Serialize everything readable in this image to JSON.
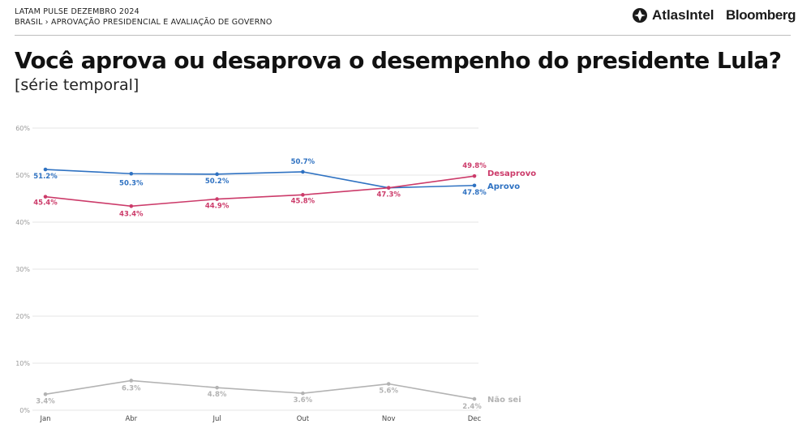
{
  "header": {
    "line1": "LATAM PULSE DEZEMBRO 2024",
    "line2": "BRASIL › APROVAÇÃO PRESIDENCIAL E AVALIAÇÃO DE GOVERNO",
    "brand_atlas": "AtlasIntel",
    "brand_bloomberg": "Bloomberg"
  },
  "colors": {
    "aprovo": "#2f72c2",
    "desaprovo": "#cc3b6a",
    "nao_sei": "#b3b3b3",
    "grid": "#e6e6e6"
  },
  "chart_data": {
    "type": "line",
    "title": "Você aprova ou desaprova o desempenho do presidente Lula?",
    "subtitle": "[série temporal]",
    "xlabel": "",
    "ylabel": "",
    "categories": [
      "Jan",
      "Abr",
      "Jul",
      "Out",
      "Nov",
      "Dec"
    ],
    "ylim": [
      0,
      60
    ],
    "yticks": [
      0,
      10,
      20,
      30,
      40,
      50,
      60
    ],
    "ytick_labels": [
      "0%",
      "10%",
      "20%",
      "30%",
      "40%",
      "50%",
      "60%"
    ],
    "grid": true,
    "series": [
      {
        "key": "aprovo",
        "name": "Aprovo",
        "values": [
          51.2,
          50.3,
          50.2,
          50.7,
          47.3,
          47.8
        ],
        "labels": [
          "51.2%",
          "50.3%",
          "50.2%",
          "50.7%",
          "",
          "47.8%"
        ]
      },
      {
        "key": "desaprovo",
        "name": "Desaprovo",
        "values": [
          45.4,
          43.4,
          44.9,
          45.8,
          47.3,
          49.8
        ],
        "labels": [
          "45.4%",
          "43.4%",
          "44.9%",
          "45.8%",
          "47.3%",
          "49.8%"
        ]
      },
      {
        "key": "nao_sei",
        "name": "Não sei",
        "values": [
          3.4,
          6.3,
          4.8,
          3.6,
          5.6,
          2.4
        ],
        "labels": [
          "3.4%",
          "6.3%",
          "4.8%",
          "3.6%",
          "5.6%",
          "2.4%"
        ]
      }
    ]
  }
}
